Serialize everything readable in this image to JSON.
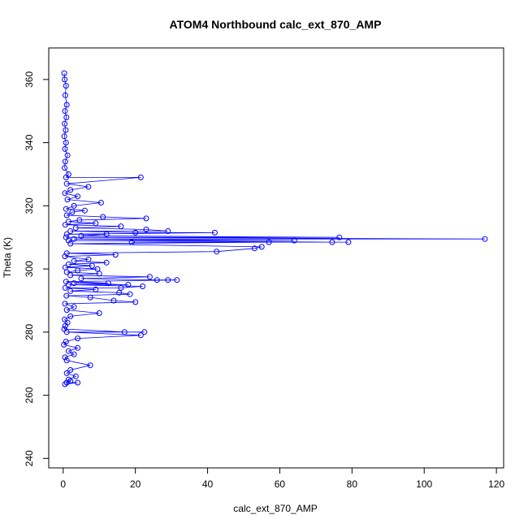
{
  "chart_data": {
    "type": "line",
    "title": "ATOM4 Northbound calc_ext_870_AMP",
    "xlabel": "calc_ext_870_AMP",
    "ylabel": "Theta (K)",
    "xlim": [
      -4,
      122
    ],
    "ylim": [
      237,
      370
    ],
    "xticks": [
      0,
      20,
      40,
      60,
      80,
      100,
      120
    ],
    "yticks": [
      240,
      260,
      280,
      300,
      320,
      340,
      360
    ],
    "grid": false,
    "series": [
      {
        "name": "calc_ext_870_AMP",
        "color": "#0000ff",
        "marker": "open-circle",
        "line": true,
        "points": [
          [
            0.3,
            362
          ],
          [
            0.4,
            360
          ],
          [
            0.8,
            358
          ],
          [
            0.6,
            355
          ],
          [
            1.0,
            352
          ],
          [
            0.5,
            350
          ],
          [
            0.9,
            348
          ],
          [
            0.4,
            346
          ],
          [
            0.7,
            344
          ],
          [
            0.3,
            342
          ],
          [
            0.8,
            340
          ],
          [
            0.5,
            338
          ],
          [
            1.2,
            336
          ],
          [
            0.6,
            334
          ],
          [
            0.4,
            332
          ],
          [
            1.5,
            330
          ],
          [
            0.8,
            329
          ],
          [
            21.5,
            329
          ],
          [
            1.0,
            327
          ],
          [
            7.0,
            326
          ],
          [
            2.0,
            325
          ],
          [
            0.5,
            324
          ],
          [
            4.0,
            323
          ],
          [
            1.2,
            322
          ],
          [
            10.5,
            321
          ],
          [
            3.0,
            320
          ],
          [
            0.8,
            319
          ],
          [
            6.0,
            318.5
          ],
          [
            2.5,
            318
          ],
          [
            1.0,
            317
          ],
          [
            11.0,
            316.5
          ],
          [
            23.0,
            316
          ],
          [
            4.5,
            315.5
          ],
          [
            1.5,
            315
          ],
          [
            9.0,
            314.5
          ],
          [
            0.6,
            314
          ],
          [
            16.0,
            313.5
          ],
          [
            3.5,
            313
          ],
          [
            23.0,
            312.5
          ],
          [
            29.0,
            312
          ],
          [
            2.0,
            312
          ],
          [
            20.0,
            311.5
          ],
          [
            42.0,
            311.5
          ],
          [
            1.0,
            311
          ],
          [
            12.0,
            311
          ],
          [
            5.0,
            310.5
          ],
          [
            76.5,
            310
          ],
          [
            0.8,
            310
          ],
          [
            116.8,
            309.5
          ],
          [
            3.0,
            309.5
          ],
          [
            64.0,
            309
          ],
          [
            1.5,
            309
          ],
          [
            74.5,
            308.5
          ],
          [
            79.0,
            308.5
          ],
          [
            19.0,
            308.5
          ],
          [
            57.0,
            308.5
          ],
          [
            2.0,
            308
          ],
          [
            55.0,
            307
          ],
          [
            53.0,
            306.5
          ],
          [
            42.5,
            305.5
          ],
          [
            1.0,
            305
          ],
          [
            14.5,
            304.5
          ],
          [
            0.5,
            304
          ],
          [
            7.0,
            303
          ],
          [
            3.0,
            302.5
          ],
          [
            12.0,
            302
          ],
          [
            1.5,
            301.5
          ],
          [
            8.0,
            301
          ],
          [
            0.6,
            300.5
          ],
          [
            9.5,
            300
          ],
          [
            4.0,
            299.5
          ],
          [
            1.0,
            299
          ],
          [
            10.0,
            298.5
          ],
          [
            2.0,
            298
          ],
          [
            24.0,
            297.5
          ],
          [
            5.0,
            297
          ],
          [
            26.0,
            296.5
          ],
          [
            29.0,
            296.5
          ],
          [
            31.5,
            296.5
          ],
          [
            0.8,
            296
          ],
          [
            12.5,
            295.5
          ],
          [
            3.0,
            295.5
          ],
          [
            18.0,
            295
          ],
          [
            1.5,
            295
          ],
          [
            22.0,
            294.5
          ],
          [
            16.0,
            294
          ],
          [
            0.6,
            294
          ],
          [
            9.0,
            293.5
          ],
          [
            2.0,
            293
          ],
          [
            15.5,
            292.5
          ],
          [
            18.5,
            292
          ],
          [
            0.9,
            291.5
          ],
          [
            7.5,
            291
          ],
          [
            14.0,
            290
          ],
          [
            20.0,
            289.5
          ],
          [
            0.5,
            289
          ],
          [
            3.0,
            288
          ],
          [
            1.0,
            287
          ],
          [
            10.0,
            286
          ],
          [
            2.0,
            285
          ],
          [
            0.4,
            284
          ],
          [
            1.2,
            283
          ],
          [
            0.6,
            282
          ],
          [
            0.3,
            281
          ],
          [
            17.0,
            280
          ],
          [
            22.5,
            280
          ],
          [
            1.0,
            280
          ],
          [
            21.5,
            279
          ],
          [
            4.0,
            278
          ],
          [
            0.8,
            277
          ],
          [
            0.2,
            276
          ],
          [
            4.0,
            275
          ],
          [
            1.5,
            274
          ],
          [
            3.0,
            273
          ],
          [
            0.5,
            272
          ],
          [
            1.0,
            271
          ],
          [
            7.5,
            269.5
          ],
          [
            2.0,
            268
          ],
          [
            1.0,
            267
          ],
          [
            3.5,
            266
          ],
          [
            1.5,
            265
          ],
          [
            2.0,
            264.5
          ],
          [
            1.0,
            264
          ],
          [
            4.0,
            264
          ],
          [
            0.5,
            263.5
          ]
        ]
      }
    ]
  }
}
